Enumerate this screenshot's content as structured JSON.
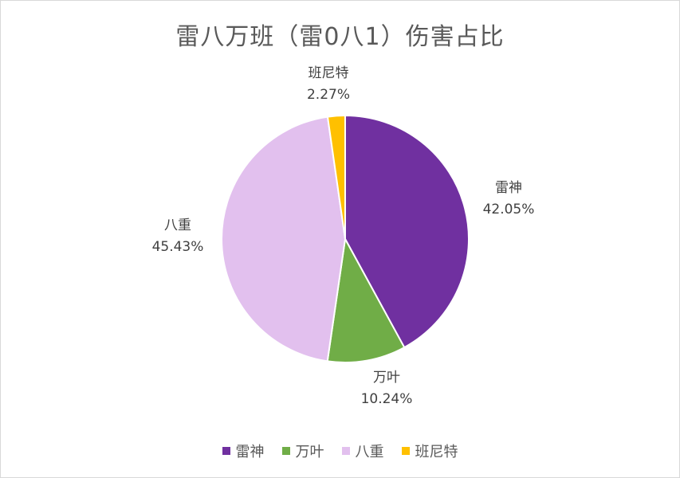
{
  "chart_data": {
    "type": "pie",
    "title": "雷八万班（雷0八1）伤害占比",
    "slices": [
      {
        "name": "雷神",
        "value": 42.05,
        "label": "42.05%",
        "color": "#7030a0"
      },
      {
        "name": "万叶",
        "value": 10.24,
        "label": "10.24%",
        "color": "#70ad47"
      },
      {
        "name": "八重",
        "value": 45.43,
        "label": "45.43%",
        "color": "#e2c0ee"
      },
      {
        "name": "班尼特",
        "value": 2.27,
        "label": "2.27%",
        "color": "#ffc000"
      }
    ],
    "start_angle": "12 o'clock",
    "direction": "clockwise",
    "legend_position": "bottom"
  }
}
